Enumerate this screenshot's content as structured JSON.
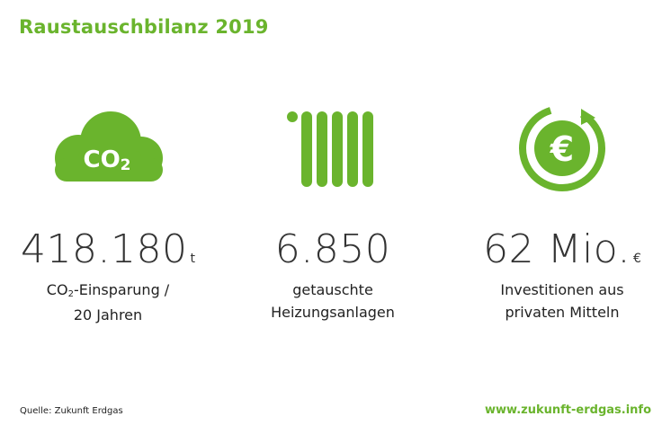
{
  "title": "Raustauschbilanz 2019",
  "accent_color": "#6ab42d",
  "stats": [
    {
      "icon": "co2-cloud-icon",
      "icon_text": "CO2",
      "value": "418.180",
      "unit": "t",
      "desc_line1_prefix": "CO",
      "desc_line1_sub": "2",
      "desc_line1_suffix": "-Einsparung /",
      "desc_line2": "20 Jahren"
    },
    {
      "icon": "radiator-icon",
      "value": "6.850",
      "unit": "",
      "desc_line1": "getauschte",
      "desc_line2": "Heizungsanlagen"
    },
    {
      "icon": "euro-cycle-icon",
      "icon_text": "€",
      "value": "62 Mio.",
      "unit": "€",
      "desc_line1": "Investitionen aus",
      "desc_line2": "privaten Mitteln"
    }
  ],
  "footer": {
    "source": "Quelle: Zukunft Erdgas",
    "website": "www.zukunft-erdgas.info"
  }
}
